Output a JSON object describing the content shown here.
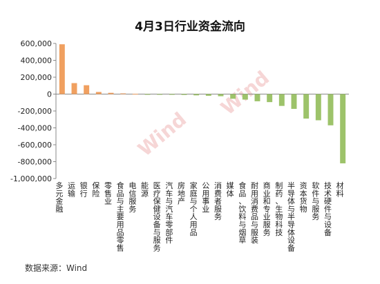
{
  "chart_data": {
    "type": "bar",
    "title": "4月3日行业资金流向",
    "xlabel": "",
    "ylabel": "",
    "ylim": [
      -1000000,
      600000
    ],
    "yticks": [
      600000,
      400000,
      200000,
      0,
      -200000,
      -400000,
      -600000,
      -800000,
      -1000000
    ],
    "ytick_labels": [
      "600,000",
      "400,000",
      "200,000",
      "0",
      "-200,000",
      "-400,000",
      "-600,000",
      "-800,000",
      "-1,000,000"
    ],
    "grid": false,
    "legend": "none",
    "categories": [
      "多元金融",
      "运输",
      "银行",
      "保险",
      "零售业",
      "食品与主要用品零售",
      "电信服务",
      "能源",
      "医疗保健设备与服务",
      "汽车与汽车零部件",
      "房地产",
      "家庭与个人用品",
      "公用事业",
      "消费者服务",
      "媒体",
      "食品、饮料与烟草",
      "耐用消费品与服装",
      "商业和专业服务",
      "制药、生物科技",
      "半导体与半导体设备",
      "资本货物",
      "软件与服务",
      "技术硬件与设备",
      "材料"
    ],
    "values": [
      590000,
      130000,
      105000,
      25000,
      15000,
      8000,
      3000,
      -2000,
      -5000,
      -8000,
      -10000,
      -15000,
      -20000,
      -25000,
      -55000,
      -65000,
      -85000,
      -95000,
      -140000,
      -175000,
      -290000,
      -310000,
      -370000,
      -820000
    ],
    "colors": {
      "positive": "#F0A060",
      "negative": "#9DC36A"
    },
    "watermark": "Wind"
  },
  "source": "数据来源：Wind"
}
